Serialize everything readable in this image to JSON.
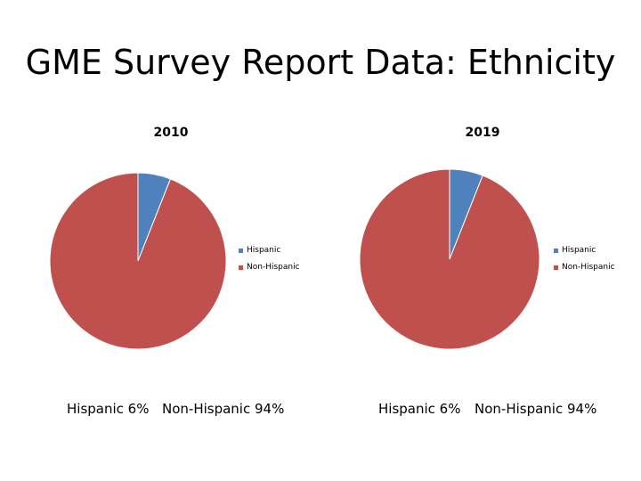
{
  "slide": {
    "title": "GME Survey Report Data: Ethnicity"
  },
  "colors": {
    "hispanic": "#4f81bd",
    "non_hispanic": "#c0504d"
  },
  "chart_data": [
    {
      "type": "pie",
      "title": "2010",
      "categories": [
        "Hispanic",
        "Non-Hispanic"
      ],
      "values": [
        6,
        94
      ],
      "legend": [
        "Hispanic",
        "Non-Hispanic"
      ],
      "legend_position": "right"
    },
    {
      "type": "pie",
      "title": "2019",
      "categories": [
        "Hispanic",
        "Non-Hispanic"
      ],
      "values": [
        6,
        94
      ],
      "legend": [
        "Hispanic",
        "Non-Hispanic"
      ],
      "legend_position": "right"
    }
  ],
  "captions": {
    "c2010": {
      "hispanic": "Hispanic 6%",
      "non_hispanic": "Non-Hispanic 94%"
    },
    "c2019": {
      "hispanic": "Hispanic 6%",
      "non_hispanic": "Non-Hispanic 94%"
    }
  }
}
